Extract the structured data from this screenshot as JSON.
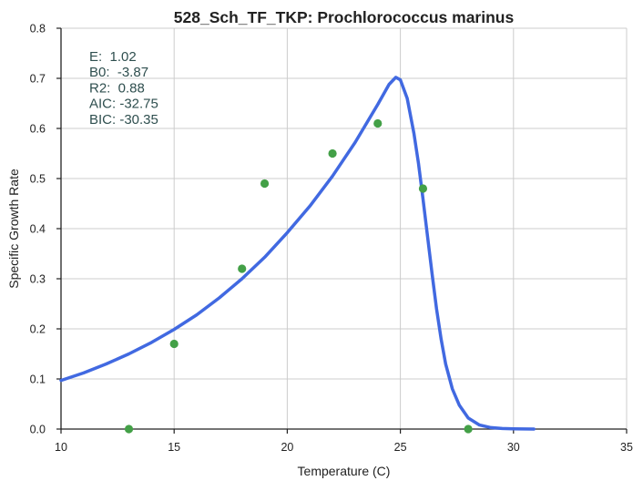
{
  "chart_data": {
    "type": "scatter",
    "title": "528_Sch_TF_TKP: Prochlorococcus marinus",
    "xlabel": "Temperature (C)",
    "ylabel": "Specific Growth Rate",
    "xlim": [
      10,
      35
    ],
    "ylim": [
      0,
      0.8
    ],
    "xticks": [
      10,
      15,
      20,
      25,
      30,
      35
    ],
    "yticks": [
      0.0,
      0.1,
      0.2,
      0.3,
      0.4,
      0.5,
      0.6,
      0.7,
      0.8
    ],
    "xtick_labels": [
      "10",
      "15",
      "20",
      "25",
      "30",
      "35"
    ],
    "ytick_labels": [
      "0.0",
      "0.1",
      "0.2",
      "0.3",
      "0.4",
      "0.5",
      "0.6",
      "0.7",
      "0.8"
    ],
    "grid": true,
    "points": {
      "color": "#43a047",
      "x": [
        13,
        15,
        18,
        19,
        22,
        24,
        26,
        28
      ],
      "y": [
        0.0,
        0.17,
        0.32,
        0.49,
        0.55,
        0.61,
        0.48,
        0.0
      ]
    },
    "fit": {
      "color": "#4169e1",
      "x": [
        10,
        11,
        12,
        13,
        14,
        15,
        16,
        17,
        18,
        19,
        20,
        21,
        22,
        23,
        24,
        24.5,
        24.8,
        25,
        25.3,
        25.6,
        25.8,
        26,
        26.2,
        26.4,
        26.6,
        26.8,
        27,
        27.3,
        27.6,
        28,
        28.5,
        29,
        29.5,
        30,
        30.9
      ],
      "y": [
        0.097,
        0.112,
        0.13,
        0.15,
        0.173,
        0.199,
        0.228,
        0.262,
        0.3,
        0.343,
        0.392,
        0.445,
        0.505,
        0.572,
        0.648,
        0.688,
        0.702,
        0.697,
        0.66,
        0.59,
        0.53,
        0.46,
        0.385,
        0.31,
        0.24,
        0.18,
        0.13,
        0.08,
        0.048,
        0.022,
        0.008,
        0.003,
        0.001,
        0.0005,
        0.0
      ]
    },
    "annotations": [
      "E:  1.02",
      "B0:  -3.87",
      "R2:  0.88",
      "AIC: -32.75",
      "BIC: -30.35"
    ]
  }
}
